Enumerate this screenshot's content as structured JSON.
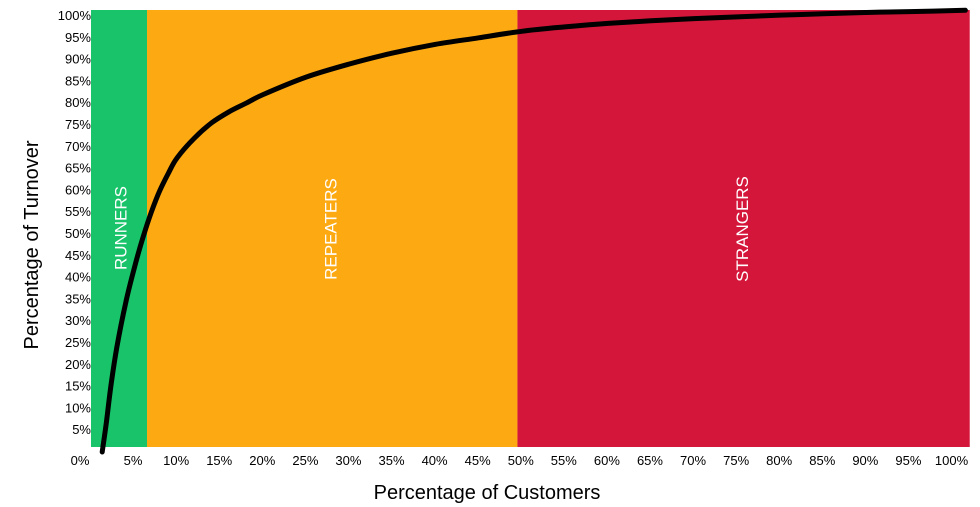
{
  "chart_data": {
    "type": "area",
    "xlabel": "Percentage of Customers",
    "ylabel": "Percentage of Turnover",
    "xlim": [
      0,
      100
    ],
    "ylim": [
      0,
      100
    ],
    "x_ticks": [
      "0%",
      "5%",
      "10%",
      "15%",
      "20%",
      "25%",
      "30%",
      "35%",
      "40%",
      "45%",
      "50%",
      "55%",
      "60%",
      "65%",
      "70%",
      "75%",
      "80%",
      "85%",
      "90%",
      "95%",
      "100%"
    ],
    "y_ticks": [
      "5%",
      "10%",
      "15%",
      "20%",
      "25%",
      "30%",
      "35%",
      "40%",
      "45%",
      "50%",
      "55%",
      "60%",
      "65%",
      "70%",
      "75%",
      "80%",
      "85%",
      "90%",
      "95%",
      "100%"
    ],
    "grid": false,
    "regions": [
      {
        "label": "RUNNERS",
        "x_start": 0,
        "x_end": 6.5,
        "color": "#18C36A"
      },
      {
        "label": "REPEATERS",
        "x_start": 6.5,
        "x_end": 49.5,
        "color": "#FCA912"
      },
      {
        "label": "STRANGERS",
        "x_start": 49.5,
        "x_end": 102,
        "color": "#D5163B"
      }
    ],
    "series": [
      {
        "color": "#000000",
        "x": [
          1.3,
          1.8,
          2.3,
          3,
          4,
          5,
          6,
          7,
          8,
          9,
          10,
          12,
          14,
          16,
          18,
          20,
          25,
          30,
          35,
          40,
          45,
          50,
          55,
          60,
          65,
          70,
          75,
          80,
          85,
          90,
          95,
          101.5
        ],
        "y": [
          0,
          7,
          15,
          24,
          34,
          42,
          49,
          55,
          60,
          64,
          67.5,
          72,
          75.5,
          78,
          80,
          82,
          86,
          89,
          91.5,
          93.5,
          95,
          96.5,
          97.5,
          98.3,
          98.9,
          99.4,
          99.8,
          100.2,
          100.5,
          100.8,
          101,
          101.3
        ]
      }
    ]
  }
}
